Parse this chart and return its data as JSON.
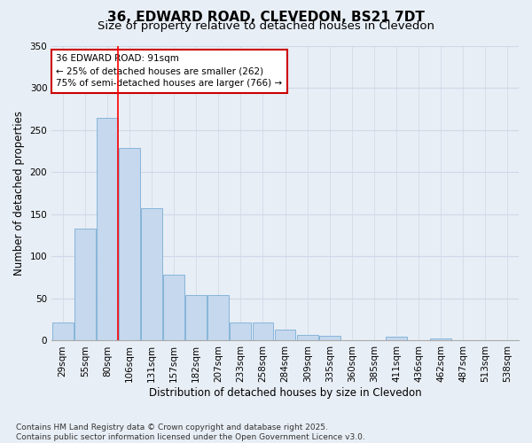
{
  "title": "36, EDWARD ROAD, CLEVEDON, BS21 7DT",
  "subtitle": "Size of property relative to detached houses in Clevedon",
  "xlabel": "Distribution of detached houses by size in Clevedon",
  "ylabel": "Number of detached properties",
  "categories": [
    "29sqm",
    "55sqm",
    "80sqm",
    "106sqm",
    "131sqm",
    "157sqm",
    "182sqm",
    "207sqm",
    "233sqm",
    "258sqm",
    "284sqm",
    "309sqm",
    "335sqm",
    "360sqm",
    "385sqm",
    "411sqm",
    "436sqm",
    "462sqm",
    "487sqm",
    "513sqm",
    "538sqm"
  ],
  "values": [
    21,
    133,
    264,
    229,
    157,
    78,
    54,
    54,
    22,
    22,
    13,
    7,
    6,
    1,
    1,
    5,
    1,
    3,
    1,
    0,
    1
  ],
  "bar_color": "#c5d8ed",
  "bar_edge_color": "#7aaed6",
  "grid_color": "#d0d8e8",
  "background_color": "#e8eef5",
  "annotation_box_color": "#ffffff",
  "annotation_box_edge": "#cc0000",
  "red_line_x": 2.5,
  "annotation_line1": "36 EDWARD ROAD: 91sqm",
  "annotation_line2": "← 25% of detached houses are smaller (262)",
  "annotation_line3": "75% of semi-detached houses are larger (766) →",
  "footer_line1": "Contains HM Land Registry data © Crown copyright and database right 2025.",
  "footer_line2": "Contains public sector information licensed under the Open Government Licence v3.0.",
  "ylim": [
    0,
    350
  ],
  "yticks": [
    0,
    50,
    100,
    150,
    200,
    250,
    300,
    350
  ],
  "title_fontsize": 11,
  "subtitle_fontsize": 9.5,
  "axis_label_fontsize": 8.5,
  "tick_fontsize": 7.5,
  "annotation_fontsize": 7.5,
  "footer_fontsize": 6.5
}
